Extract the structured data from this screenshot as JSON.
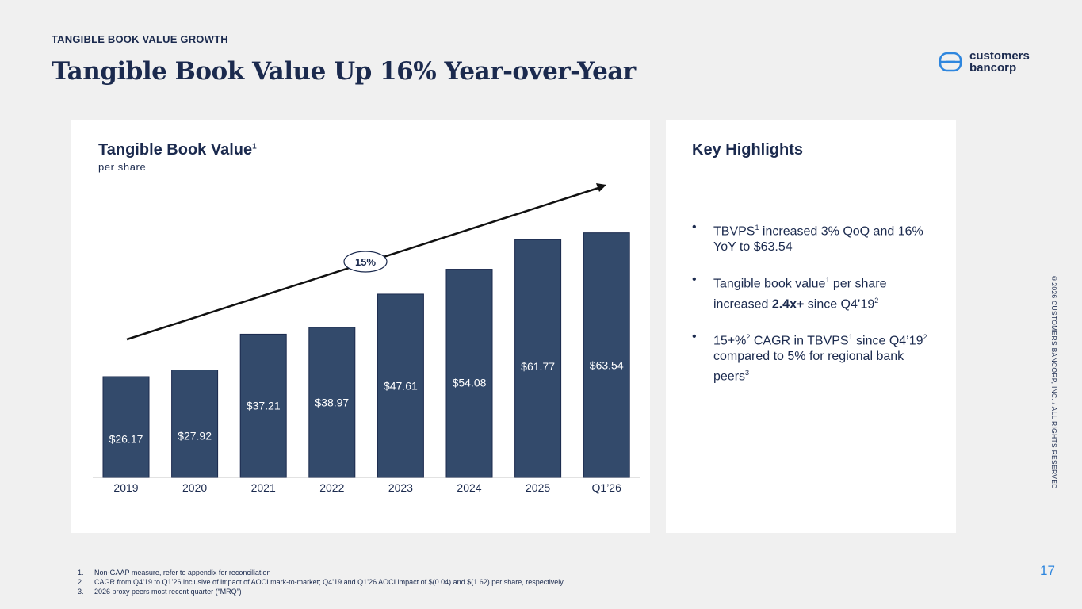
{
  "header": {
    "section_label": "TANGIBLE BOOK VALUE GROWTH",
    "title": "Tangible Book Value Up 16% Year-over-Year"
  },
  "logo": {
    "line1": "customers",
    "line2": "bancorp",
    "icon": "customers-bancorp-logo-icon",
    "color": "#2e86de"
  },
  "chart_panel": {
    "title": "Tangible Book Value",
    "title_footnote": "1",
    "subtitle": "per share"
  },
  "chart_data": {
    "type": "bar",
    "categories": [
      "2019",
      "2020",
      "2021",
      "2022",
      "2023",
      "2024",
      "2025",
      "Q1’26"
    ],
    "values": [
      26.17,
      27.92,
      37.21,
      38.97,
      47.61,
      54.08,
      61.77,
      63.54
    ],
    "data_labels": [
      "$26.17",
      "$27.92",
      "$37.21",
      "$38.97",
      "$47.61",
      "$54.08",
      "$61.77",
      "$63.54"
    ],
    "title": "Tangible Book Value",
    "subtitle": "per share",
    "xlabel": "",
    "ylabel": "",
    "ylim": [
      0,
      68
    ],
    "grid": false,
    "annotations": [
      {
        "type": "trend-arrow",
        "label": "15%"
      }
    ],
    "bar_color": "#334a6b"
  },
  "highlights": {
    "title": "Key Highlights",
    "items": [
      {
        "parts": [
          {
            "text": "TBVPS"
          },
          {
            "text": "1",
            "sup": true
          },
          {
            "text": " increased 3% QoQ and 16% YoY to $63.54"
          }
        ]
      },
      {
        "parts": [
          {
            "text": "Tangible book value"
          },
          {
            "text": "1",
            "sup": true
          },
          {
            "text": " per share increased "
          },
          {
            "text": "2.4x+",
            "bold": true
          },
          {
            "text": " since Q4’19"
          },
          {
            "text": "2",
            "sup": true
          }
        ]
      },
      {
        "parts": [
          {
            "text": "15+%"
          },
          {
            "text": "2",
            "sup": true
          },
          {
            "text": " CAGR in TBVPS"
          },
          {
            "text": "1",
            "sup": true
          },
          {
            "text": " since Q4’19"
          },
          {
            "text": "2",
            "sup": true
          },
          {
            "text": " compared to 5% for regional bank peers"
          },
          {
            "text": "3",
            "sup": true
          }
        ]
      }
    ]
  },
  "footnotes": [
    {
      "num": "1.",
      "text": "Non-GAAP measure, refer to appendix for reconciliation"
    },
    {
      "num": "2.",
      "text": "CAGR from Q4’19 to Q1’26 inclusive of impact of AOCI mark-to-market; Q4’19 and Q1’26 AOCI impact of $(0.04) and $(1.62) per share, respectively"
    },
    {
      "num": "3.",
      "text": "2026 proxy peers most recent quarter (“MRQ”)"
    }
  ],
  "copyright": "©2026 CUSTOMERS BANCORP, INC. / ALL RIGHTS RESERVED",
  "page_number": "17",
  "colors": {
    "navy": "#1b2a4e",
    "bar": "#334a6b",
    "accent": "#2e86de",
    "background": "#f0f0f0",
    "panel": "#ffffff"
  }
}
